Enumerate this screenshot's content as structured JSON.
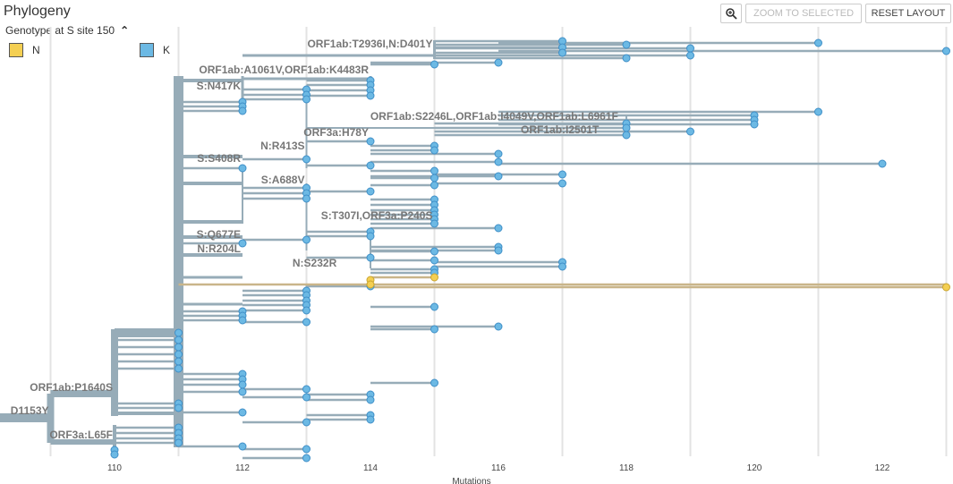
{
  "header": {
    "title": "Phylogeny",
    "color_by": "Genotype at S site 150",
    "zoom_button": "ZOOM TO SELECTED",
    "reset_button": "RESET LAYOUT",
    "zoom_icon": "magnifier-zoom-icon"
  },
  "legend": [
    {
      "label": "N",
      "color": "#f4cf52"
    },
    {
      "label": "K",
      "color": "#6cb9e4"
    }
  ],
  "colors": {
    "branch": "#97acb8",
    "tip_K": "#6cb9e4",
    "tip_K_stroke": "#3f8fc7",
    "tip_N": "#f4cf52",
    "branch_N": "#c9b58a",
    "grid": "#e3e3e3"
  },
  "chart_data": {
    "type": "phylogenetic-tree",
    "xlabel": "Mutations",
    "x_ticks": [
      110,
      112,
      114,
      116,
      118,
      120,
      122
    ],
    "xlim": [
      108.2,
      123.2
    ],
    "color_by": "Genotype at S site 150",
    "branch_labels": [
      {
        "text": "ORF1ab:T2936I,N:D401Y",
        "x": 115
      },
      {
        "text": "ORF1ab:A1061V,ORF1ab:K4483R",
        "x": 114
      },
      {
        "text": "S:N417K",
        "x": 112
      },
      {
        "text": "ORF1ab:S2246L,ORF1ab:I4049V,ORF1ab:L6961F",
        "x": 117.9
      },
      {
        "text": "ORF3a:H78Y",
        "x": 114
      },
      {
        "text": "ORF1ab:I2501T",
        "x": 117.6
      },
      {
        "text": "N:R413S",
        "x": 113
      },
      {
        "text": "S:S408R",
        "x": 112
      },
      {
        "text": "S:A688V",
        "x": 113
      },
      {
        "text": "S:T307I,ORF3a:P240S",
        "x": 115
      },
      {
        "text": "S:Q677E",
        "x": 112
      },
      {
        "text": "N:R204L",
        "x": 112
      },
      {
        "text": "N:S232R",
        "x": 113.5
      },
      {
        "text": "ORF1ab:P1640S",
        "x": 110
      },
      {
        "text": "D1153Y",
        "x": 109
      },
      {
        "text": "ORF3a:L65F",
        "x": 110
      }
    ],
    "tips_K": [
      {
        "x": 117,
        "y": 46
      },
      {
        "x": 121,
        "y": 48
      },
      {
        "x": 118,
        "y": 50
      },
      {
        "x": 123,
        "y": 57
      },
      {
        "x": 117,
        "y": 53
      },
      {
        "x": 119,
        "y": 54
      },
      {
        "x": 117,
        "y": 59
      },
      {
        "x": 119,
        "y": 62
      },
      {
        "x": 118,
        "y": 65
      },
      {
        "x": 116,
        "y": 70
      },
      {
        "x": 115,
        "y": 72
      },
      {
        "x": 114,
        "y": 90
      },
      {
        "x": 114,
        "y": 95
      },
      {
        "x": 114,
        "y": 101
      },
      {
        "x": 114,
        "y": 107
      },
      {
        "x": 113,
        "y": 100
      },
      {
        "x": 113,
        "y": 106
      },
      {
        "x": 113,
        "y": 111
      },
      {
        "x": 112,
        "y": 114
      },
      {
        "x": 112,
        "y": 119
      },
      {
        "x": 112,
        "y": 124
      },
      {
        "x": 121,
        "y": 125
      },
      {
        "x": 120,
        "y": 129
      },
      {
        "x": 120,
        "y": 134
      },
      {
        "x": 120,
        "y": 139
      },
      {
        "x": 118,
        "y": 138
      },
      {
        "x": 118,
        "y": 143
      },
      {
        "x": 119,
        "y": 147
      },
      {
        "x": 118,
        "y": 151
      },
      {
        "x": 114,
        "y": 158
      },
      {
        "x": 115,
        "y": 163
      },
      {
        "x": 115,
        "y": 168
      },
      {
        "x": 116,
        "y": 172
      },
      {
        "x": 113,
        "y": 178
      },
      {
        "x": 116,
        "y": 181
      },
      {
        "x": 122,
        "y": 183
      },
      {
        "x": 114,
        "y": 185
      },
      {
        "x": 112,
        "y": 188
      },
      {
        "x": 115,
        "y": 191
      },
      {
        "x": 117,
        "y": 195
      },
      {
        "x": 116,
        "y": 197
      },
      {
        "x": 115,
        "y": 199
      },
      {
        "x": 117,
        "y": 205
      },
      {
        "x": 115,
        "y": 207
      },
      {
        "x": 114,
        "y": 214
      },
      {
        "x": 113,
        "y": 210
      },
      {
        "x": 113,
        "y": 216
      },
      {
        "x": 113,
        "y": 222
      },
      {
        "x": 115,
        "y": 223
      },
      {
        "x": 115,
        "y": 229
      },
      {
        "x": 115,
        "y": 235
      },
      {
        "x": 115,
        "y": 240
      },
      {
        "x": 115,
        "y": 245
      },
      {
        "x": 115,
        "y": 250
      },
      {
        "x": 116,
        "y": 255
      },
      {
        "x": 114,
        "y": 259
      },
      {
        "x": 114,
        "y": 264
      },
      {
        "x": 113,
        "y": 268
      },
      {
        "x": 112,
        "y": 272
      },
      {
        "x": 116,
        "y": 276
      },
      {
        "x": 116,
        "y": 280
      },
      {
        "x": 115,
        "y": 281
      },
      {
        "x": 114,
        "y": 288
      },
      {
        "x": 115,
        "y": 291
      },
      {
        "x": 117,
        "y": 293
      },
      {
        "x": 117,
        "y": 298
      },
      {
        "x": 115,
        "y": 301
      },
      {
        "x": 115,
        "y": 305
      },
      {
        "x": 114,
        "y": 320
      },
      {
        "x": 113,
        "y": 325
      },
      {
        "x": 113,
        "y": 330
      },
      {
        "x": 113,
        "y": 336
      },
      {
        "x": 113,
        "y": 341
      },
      {
        "x": 113,
        "y": 347
      },
      {
        "x": 115,
        "y": 343
      },
      {
        "x": 112,
        "y": 348
      },
      {
        "x": 112,
        "y": 353
      },
      {
        "x": 112,
        "y": 358
      },
      {
        "x": 113,
        "y": 360
      },
      {
        "x": 116,
        "y": 365
      },
      {
        "x": 115,
        "y": 368
      },
      {
        "x": 111,
        "y": 372
      },
      {
        "x": 111,
        "y": 380
      },
      {
        "x": 111,
        "y": 388
      },
      {
        "x": 111,
        "y": 396
      },
      {
        "x": 111,
        "y": 404
      },
      {
        "x": 111,
        "y": 412
      },
      {
        "x": 112,
        "y": 418
      },
      {
        "x": 112,
        "y": 424
      },
      {
        "x": 112,
        "y": 430
      },
      {
        "x": 115,
        "y": 428
      },
      {
        "x": 113,
        "y": 435
      },
      {
        "x": 112,
        "y": 438
      },
      {
        "x": 114,
        "y": 441
      },
      {
        "x": 113,
        "y": 444
      },
      {
        "x": 114,
        "y": 447
      },
      {
        "x": 111,
        "y": 451
      },
      {
        "x": 111,
        "y": 456
      },
      {
        "x": 112,
        "y": 461
      },
      {
        "x": 114,
        "y": 464
      },
      {
        "x": 114,
        "y": 469
      },
      {
        "x": 113,
        "y": 472
      },
      {
        "x": 111,
        "y": 478
      },
      {
        "x": 111,
        "y": 484
      },
      {
        "x": 111,
        "y": 490
      },
      {
        "x": 111,
        "y": 495
      },
      {
        "x": 112,
        "y": 499
      },
      {
        "x": 113,
        "y": 502
      },
      {
        "x": 113,
        "y": 512
      },
      {
        "x": 110,
        "y": 503
      },
      {
        "x": 110,
        "y": 508
      }
    ],
    "tips_N": [
      {
        "x": 115,
        "y": 310
      },
      {
        "x": 114,
        "y": 313
      },
      {
        "x": 114,
        "y": 318
      },
      {
        "x": 123,
        "y": 321
      }
    ]
  }
}
